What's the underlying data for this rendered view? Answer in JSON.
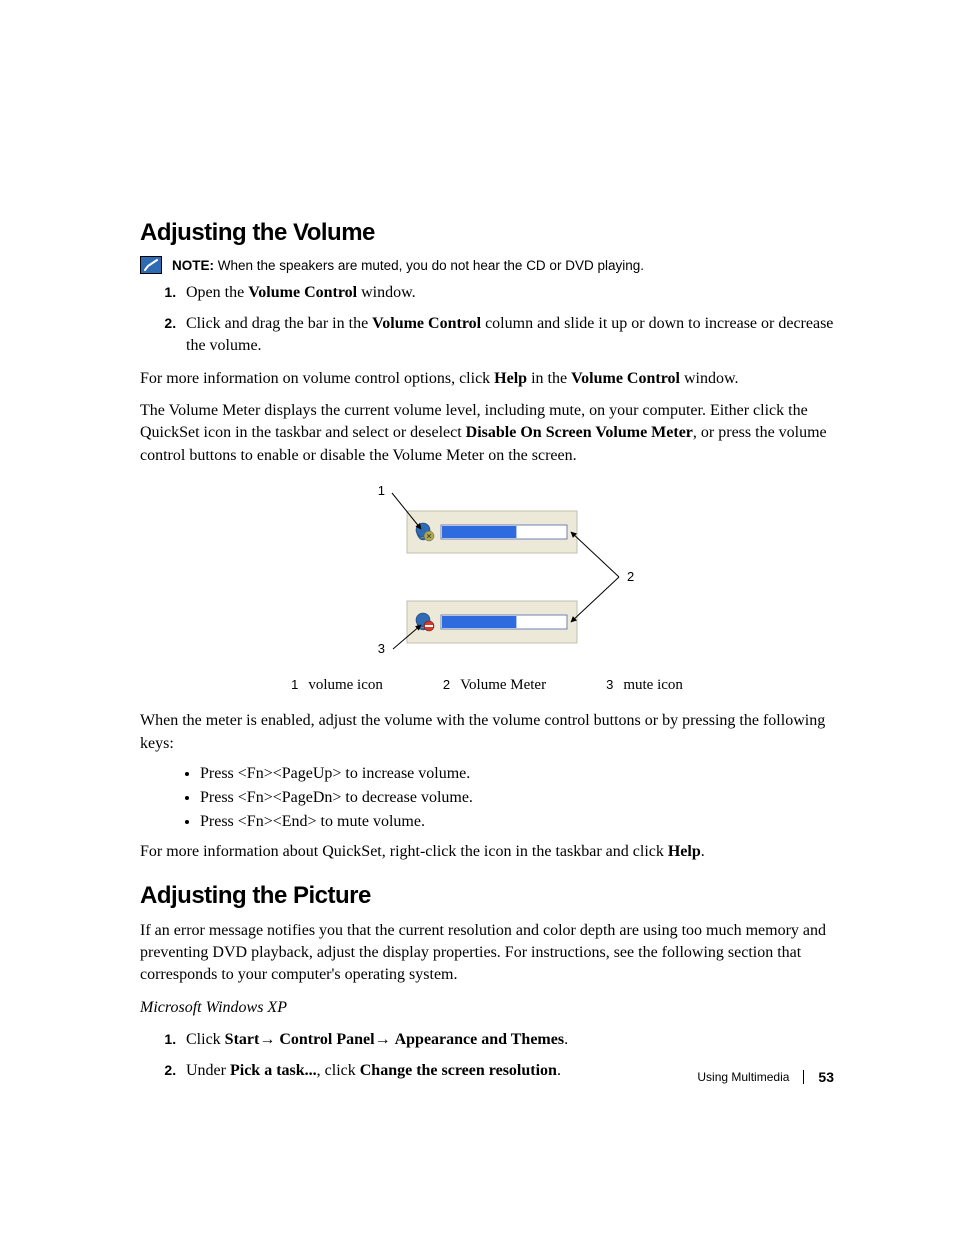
{
  "section1": {
    "title": "Adjusting the Volume",
    "note_label": "NOTE:",
    "note_text": " When the speakers are muted, you do not hear the CD or DVD playing.",
    "step1_a": "Open the ",
    "step1_b": "Volume Control",
    "step1_c": " window.",
    "step2_a": "Click and drag the bar in the ",
    "step2_b": "Volume Control",
    "step2_c": " column and slide it up or down to increase or decrease the volume.",
    "para1_a": "For more information on volume control options, click ",
    "para1_b": "Help",
    "para1_c": " in the ",
    "para1_d": "Volume Control",
    "para1_e": " window.",
    "para2_a": "The Volume Meter displays the current volume level, including mute, on your computer. Either click the QuickSet icon in the taskbar and select or deselect ",
    "para2_b": "Disable On Screen Volume Meter",
    "para2_c": ", or press the volume control buttons to enable or disable the Volume Meter on the screen.",
    "legend": {
      "n1": "1",
      "t1": "volume icon",
      "n2": "2",
      "t2": "Volume Meter",
      "n3": "3",
      "t3": "mute icon"
    },
    "para3": "When the meter is enabled, adjust the volume with the volume control buttons or by pressing the following keys:",
    "bullet1": "Press <Fn><PageUp> to increase volume.",
    "bullet2": "Press <Fn><PageDn> to decrease volume.",
    "bullet3": "Press <Fn><End> to mute volume.",
    "para4_a": "For more information about QuickSet, right-click the icon in the taskbar and click ",
    "para4_b": "Help",
    "para4_c": "."
  },
  "section2": {
    "title": "Adjusting the Picture",
    "para1": "If an error message notifies you that the current resolution and color depth are using too much memory and preventing DVD playback, adjust the display properties. For instructions, see the following section that corresponds to your computer's operating system.",
    "subhead": "Microsoft Windows XP",
    "step1_a": "Click ",
    "step1_b": "Start",
    "step1_c": "→ ",
    "step1_d": "Control Panel",
    "step1_e": "→ ",
    "step1_f": "Appearance and Themes",
    "step1_g": ".",
    "step2_a": "Under ",
    "step2_b": "Pick a task...",
    "step2_c": ", click ",
    "step2_d": "Change the screen resolution",
    "step2_e": "."
  },
  "diagram": {
    "panel_bg": "#ece9d8",
    "panel_border": "#c0c0b0",
    "bar_bg": "#ffffff",
    "bar_fill": "#2e6bdf",
    "bar_border": "#6f81b3",
    "icon_blue": "#2e6bb3",
    "icon_olive": "#b2ab4e",
    "icon_red": "#d63a2b",
    "line_color": "#000000",
    "label_font_size": 13,
    "callouts": {
      "c1": "1",
      "c2": "2",
      "c3": "3"
    },
    "bar1_fill_ratio": 0.6,
    "bar2_fill_ratio": 0.6
  },
  "footer": {
    "chapter": "Using Multimedia",
    "page": "53"
  }
}
